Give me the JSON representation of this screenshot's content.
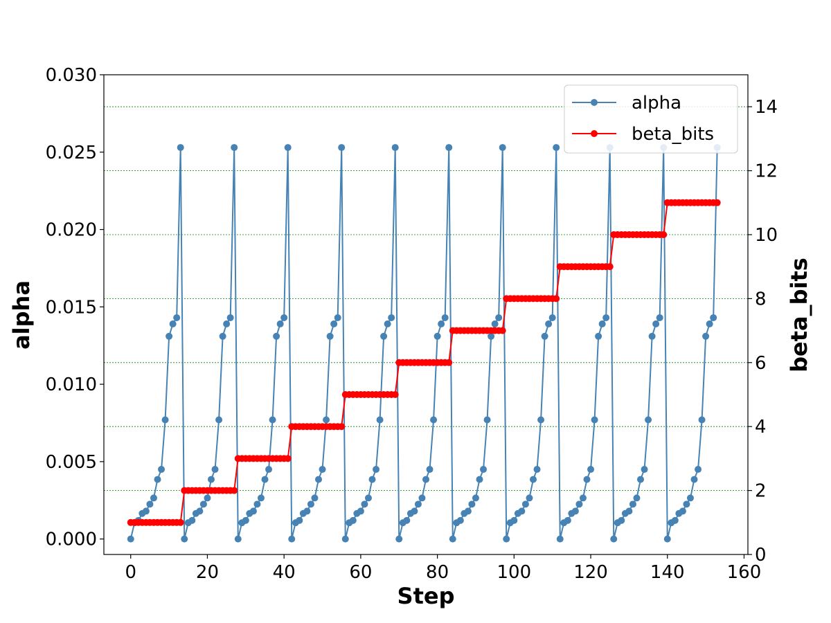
{
  "chart_data": {
    "type": "line",
    "title": "",
    "xlabel": "Step",
    "ylabel_left": "alpha",
    "ylabel_right": "beta_bits",
    "xlim": [
      -7,
      161
    ],
    "ylim_left": [
      -0.001,
      0.03
    ],
    "ylim_right": [
      0,
      15
    ],
    "x_ticks": [
      0,
      20,
      40,
      60,
      80,
      100,
      120,
      140,
      160
    ],
    "x_tick_labels": [
      "0",
      "20",
      "40",
      "60",
      "80",
      "100",
      "120",
      "140",
      "160"
    ],
    "left_ticks": [
      0,
      0.005,
      0.01,
      0.015,
      0.02,
      0.025,
      0.03
    ],
    "left_tick_labels": [
      "0.000",
      "0.005",
      "0.010",
      "0.015",
      "0.020",
      "0.025",
      "0.030"
    ],
    "right_ticks": [
      0,
      2,
      4,
      6,
      8,
      10,
      12,
      14
    ],
    "right_tick_labels": [
      "0",
      "2",
      "4",
      "6",
      "8",
      "10",
      "12",
      "14"
    ],
    "grid": "horizontal dashed green lines at right-axis ticks",
    "legend_position": "top-right",
    "cycle_length": 14,
    "num_cycles": 11,
    "series": [
      {
        "name": "alpha",
        "axis": "left",
        "color": "#4682b4",
        "marker": "circle",
        "cycle_values": [
          0.0,
          0.00105,
          0.0012,
          0.00165,
          0.0018,
          0.00225,
          0.00265,
          0.00385,
          0.0045,
          0.0077,
          0.0131,
          0.0139,
          0.0143,
          0.0253
        ]
      },
      {
        "name": "beta_bits",
        "axis": "right",
        "color": "#ff0000",
        "marker": "circle",
        "cycle_values_by_cycle": [
          1,
          2,
          3,
          4,
          5,
          6,
          7,
          8,
          9,
          10,
          11
        ]
      }
    ]
  },
  "legend": {
    "items": [
      {
        "label": "alpha",
        "color": "#4682b4"
      },
      {
        "label": "beta_bits",
        "color": "#ff0000"
      }
    ]
  }
}
